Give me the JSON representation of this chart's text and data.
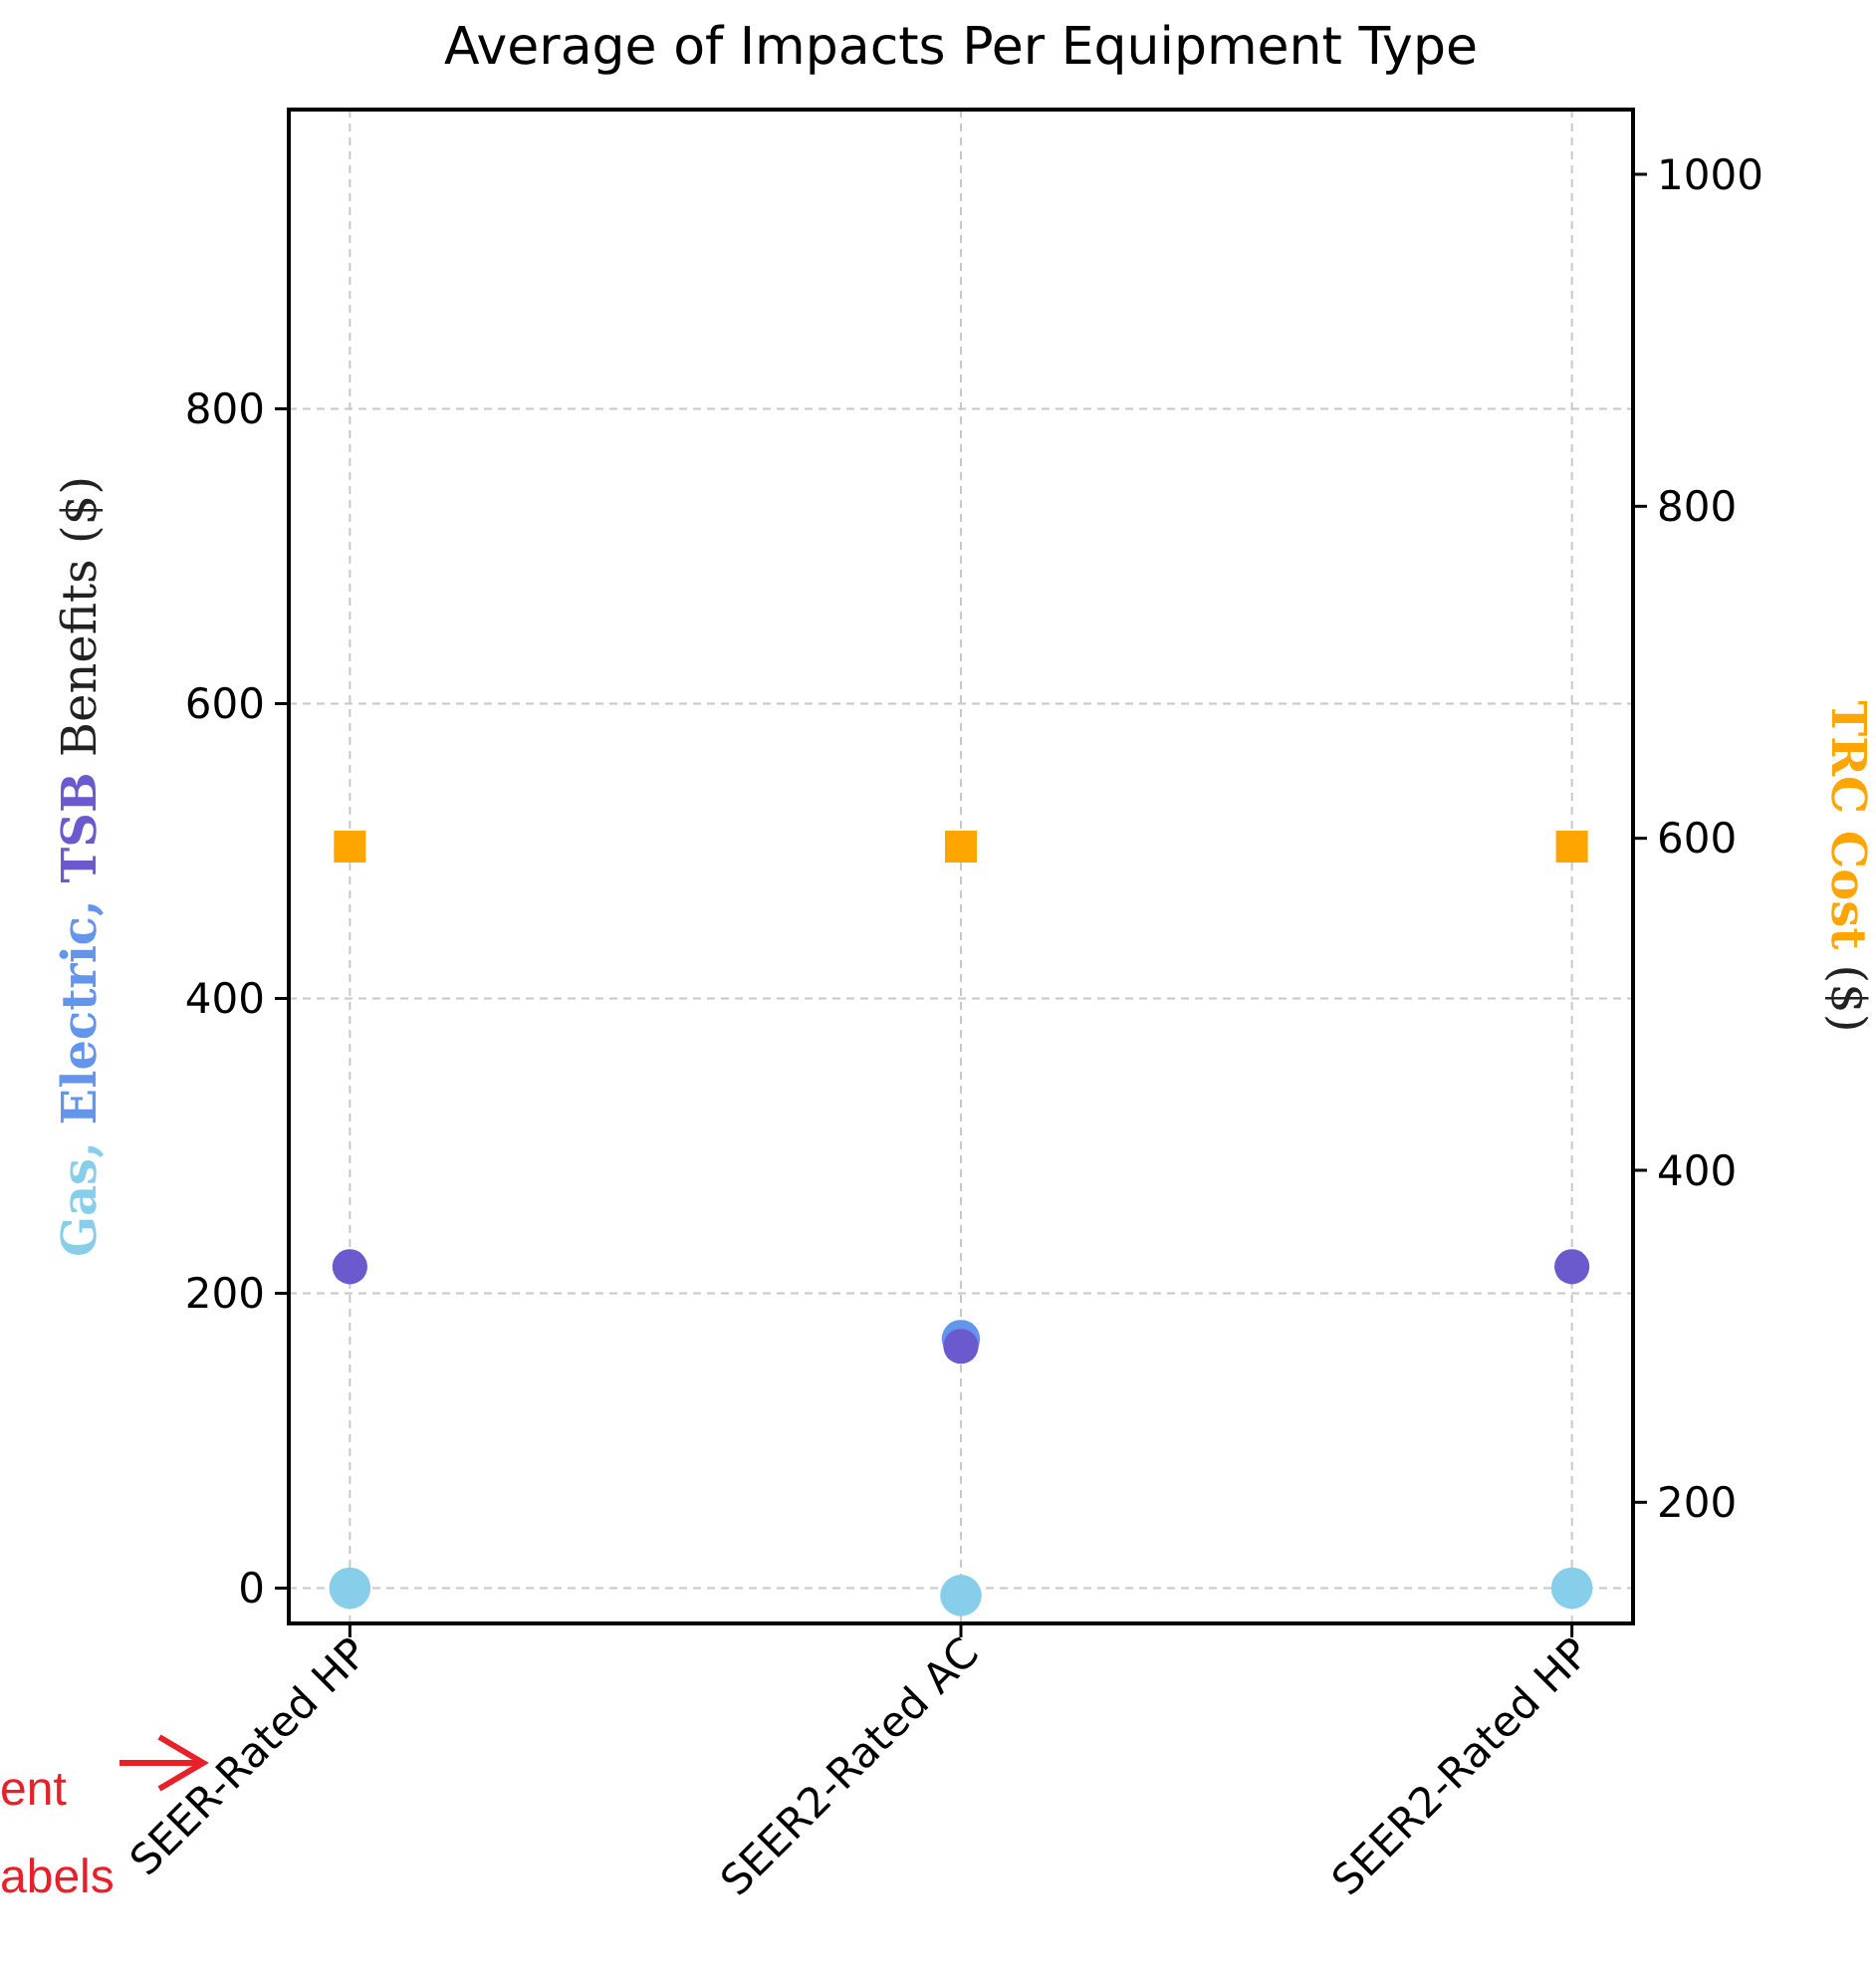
{
  "chart_data": {
    "type": "scatter",
    "title": "Average of Impacts Per Equipment Type",
    "ylabel": "Gas, Electric, TSB Benefits ($)",
    "y2label": "TRC Cost ($)",
    "categories": [
      "SEER-Rated HP",
      "SEER2-Rated AC",
      "SEER2-Rated HP"
    ],
    "series": [
      {
        "color": "#87ceeb",
        "values": [
          0,
          -5,
          0
        ],
        "marker": "circle"
      },
      {
        "color": "#6495ed",
        "values": [
          null,
          169,
          null
        ],
        "marker": "circle"
      },
      {
        "color": "#6a5acd",
        "values": [
          218,
          164,
          218
        ],
        "marker": "circle"
      },
      {
        "color": "#ffa500",
        "values": [
          595,
          595,
          595
        ],
        "axis": "y2",
        "marker": "square"
      }
    ],
    "ylim": [
      -24,
      1003
    ],
    "yticks": [
      0,
      200,
      400,
      600,
      800
    ],
    "y2lim": [
      127,
      1039
    ],
    "y2ticks": [
      200,
      400,
      600,
      800,
      1000
    ],
    "grid": true,
    "annotations": [
      "ent",
      "abels"
    ]
  }
}
